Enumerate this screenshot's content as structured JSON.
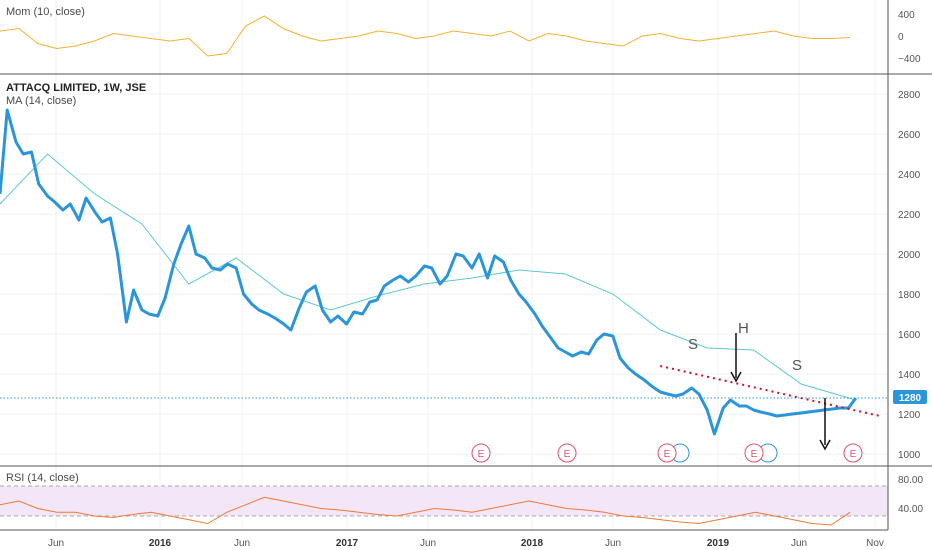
{
  "colors": {
    "price": "#2b95d9",
    "ma": "#5bc8d6",
    "mom": "#f2b233",
    "rsi": "#ef7a36",
    "rsi_band": "#f3e6f9",
    "trendline": "#c8102e",
    "price_tag": "#2b95d9",
    "earnings": "#e0506a",
    "dividend": "#2b95d9",
    "pattern_label": "#555555"
  },
  "panels": {
    "mom": {
      "label": "Mom (10, close)",
      "yticks": [
        "400",
        "0",
        "−400"
      ]
    },
    "main": {
      "symbol_title": "ATTACQ LIMITED, 1W, JSE",
      "ma_label": "MA (14, close)",
      "yticks": [
        "2800",
        "2600",
        "2400",
        "2200",
        "2000",
        "1800",
        "1600",
        "1400",
        "1200",
        "1000"
      ],
      "last_price": "1280",
      "events": [
        "E",
        "E",
        "E",
        "E",
        "E"
      ],
      "pattern": {
        "left_shoulder": "S",
        "head": "H",
        "right_shoulder": "S"
      }
    },
    "rsi": {
      "label": "RSI (14, close)",
      "yticks": [
        "80.00",
        "40.00"
      ]
    }
  },
  "xaxis": {
    "ticks": [
      "Jun",
      "2016",
      "Jun",
      "2017",
      "Jun",
      "2018",
      "Jun",
      "2019",
      "Jun",
      "Nov"
    ]
  },
  "chart_data": {
    "type": "line",
    "title": "ATTACQ LIMITED, 1W, JSE",
    "ylim": [
      950,
      2850
    ],
    "x_range": [
      "2015-03",
      "2019-11"
    ],
    "series": [
      {
        "name": "ATTACQ LIMITED, 1W, JSE",
        "x": [
          "2015-03-01",
          "2015-03-15",
          "2015-04-01",
          "2015-04-15",
          "2015-05-01",
          "2015-05-15",
          "2015-06-01",
          "2015-06-15",
          "2015-07-01",
          "2015-07-15",
          "2015-08-01",
          "2015-08-15",
          "2015-09-01",
          "2015-09-15",
          "2015-10-01",
          "2015-10-15",
          "2015-11-01",
          "2015-11-15",
          "2015-12-01",
          "2015-12-15",
          "2016-01-01",
          "2016-01-15",
          "2016-02-01",
          "2016-02-15",
          "2016-03-01",
          "2016-03-15",
          "2016-04-01",
          "2016-04-15",
          "2016-05-01",
          "2016-05-15",
          "2016-06-01",
          "2016-06-15",
          "2016-07-01",
          "2016-07-15",
          "2016-08-01",
          "2016-08-15",
          "2016-09-01",
          "2016-09-15",
          "2016-10-01",
          "2016-10-15",
          "2016-11-01",
          "2016-11-15",
          "2016-12-01",
          "2016-12-15",
          "2017-01-01",
          "2017-01-15",
          "2017-02-01",
          "2017-02-15",
          "2017-03-01",
          "2017-03-15",
          "2017-04-01",
          "2017-04-15",
          "2017-05-01",
          "2017-05-15",
          "2017-06-01",
          "2017-06-15",
          "2017-07-01",
          "2017-07-15",
          "2017-08-01",
          "2017-08-15",
          "2017-09-01",
          "2017-09-15",
          "2017-10-01",
          "2017-10-15",
          "2017-11-01",
          "2017-11-15",
          "2017-12-01",
          "2017-12-15",
          "2018-01-01",
          "2018-01-15",
          "2018-02-01",
          "2018-02-15",
          "2018-03-01",
          "2018-03-15",
          "2018-04-01",
          "2018-04-15",
          "2018-05-01",
          "2018-05-15",
          "2018-06-01",
          "2018-06-15",
          "2018-07-01",
          "2018-07-15",
          "2018-08-01",
          "2018-08-15",
          "2018-09-01",
          "2018-09-15",
          "2018-10-01",
          "2018-10-15",
          "2018-11-01",
          "2018-11-15",
          "2018-12-01",
          "2018-12-15",
          "2019-01-01",
          "2019-01-15",
          "2019-02-01",
          "2019-02-15",
          "2019-03-01",
          "2019-03-15",
          "2019-04-01",
          "2019-04-15",
          "2019-05-01",
          "2019-05-15",
          "2019-06-01",
          "2019-06-15",
          "2019-07-01",
          "2019-07-15",
          "2019-08-01",
          "2019-08-15",
          "2019-09-01",
          "2019-09-15"
        ],
        "values": [
          2300,
          2720,
          2560,
          2500,
          2510,
          2350,
          2290,
          2260,
          2220,
          2250,
          2170,
          2280,
          2210,
          2160,
          2180,
          2000,
          1660,
          1820,
          1720,
          1700,
          1690,
          1780,
          1950,
          2050,
          2140,
          2000,
          1980,
          1930,
          1920,
          1950,
          1930,
          1800,
          1750,
          1720,
          1700,
          1680,
          1650,
          1620,
          1730,
          1810,
          1840,
          1720,
          1660,
          1690,
          1650,
          1710,
          1700,
          1760,
          1770,
          1840,
          1870,
          1890,
          1860,
          1890,
          1940,
          1930,
          1850,
          1890,
          2000,
          1990,
          1930,
          2000,
          1880,
          1990,
          1960,
          1870,
          1800,
          1760,
          1700,
          1640,
          1580,
          1530,
          1510,
          1490,
          1510,
          1500,
          1570,
          1600,
          1590,
          1480,
          1430,
          1400,
          1370,
          1340,
          1310,
          1300,
          1290,
          1300,
          1330,
          1300,
          1220,
          1100,
          1230,
          1270,
          1240,
          1240,
          1220,
          1210,
          1200,
          1190,
          1195,
          1200,
          1205,
          1210,
          1215,
          1220,
          1225,
          1230,
          1230,
          1280
        ],
        "color": "#2b95d9"
      },
      {
        "name": "MA (14, close)",
        "x": [
          "2015-03-01",
          "2015-06-01",
          "2015-09-01",
          "2015-12-01",
          "2016-03-01",
          "2016-06-01",
          "2016-09-01",
          "2016-12-01",
          "2017-03-01",
          "2017-06-01",
          "2017-09-01",
          "2017-12-01",
          "2018-03-01",
          "2018-06-01",
          "2018-09-01",
          "2018-12-01",
          "2019-03-01",
          "2019-06-01",
          "2019-09-15"
        ],
        "values": [
          2250,
          2500,
          2300,
          2150,
          1850,
          1980,
          1800,
          1720,
          1790,
          1850,
          1880,
          1920,
          1900,
          1800,
          1620,
          1530,
          1520,
          1350,
          1270
        ],
        "color": "#5bc8d6"
      },
      {
        "name": "Mom (10, close)",
        "ylim": [
          -600,
          600
        ],
        "values": [
          100,
          150,
          -150,
          -250,
          -200,
          -100,
          50,
          0,
          -50,
          -100,
          -50,
          -400,
          -350,
          200,
          400,
          150,
          0,
          -100,
          -50,
          0,
          100,
          50,
          -50,
          0,
          100,
          50,
          0,
          100,
          -100,
          50,
          0,
          -100,
          -150,
          -200,
          0,
          50,
          -50,
          -100,
          -50,
          0,
          50,
          100,
          0,
          -50,
          -50,
          -30
        ],
        "color": "#f2b233"
      },
      {
        "name": "RSI (14, close)",
        "ylim": [
          10,
          90
        ],
        "values": [
          55,
          60,
          50,
          45,
          45,
          40,
          38,
          42,
          45,
          40,
          35,
          30,
          45,
          55,
          65,
          60,
          55,
          50,
          48,
          45,
          42,
          40,
          45,
          50,
          48,
          45,
          50,
          55,
          60,
          55,
          50,
          48,
          45,
          40,
          38,
          35,
          32,
          30,
          35,
          40,
          45,
          40,
          35,
          30,
          28,
          45
        ],
        "color": "#ef7a36"
      }
    ],
    "trendline": {
      "start": [
        "2018-09-01",
        1440
      ],
      "end": [
        "2019-11-01",
        1190
      ]
    },
    "last_value": 1280,
    "grid": true
  }
}
